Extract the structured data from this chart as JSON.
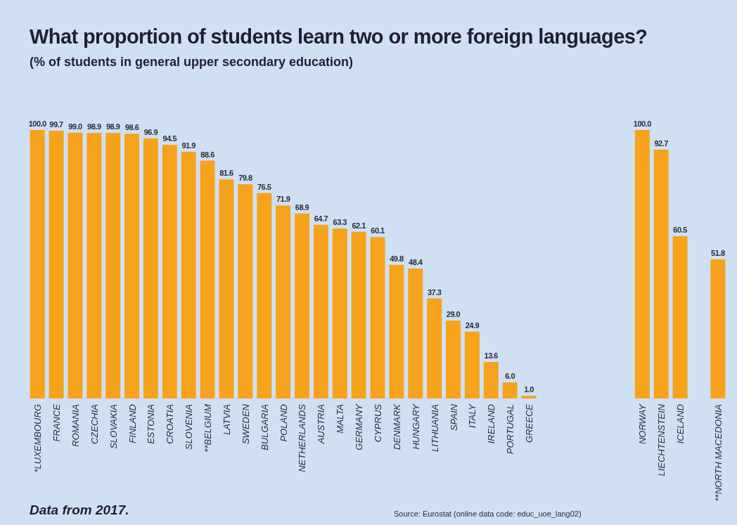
{
  "chart_data": {
    "type": "bar",
    "title": "What proportion of students learn two or more foreign languages?",
    "subtitle": "(% of students in general upper secondary education)",
    "categories": [
      "*LUXEMBOURG",
      "FRANCE",
      "ROMANIA",
      "CZECHIA",
      "SLOVAKIA",
      "FINLAND",
      "ESTONIA",
      "CROATIA",
      "SLOVENIA",
      "**BELGIUM",
      "LATVIA",
      "SWEDEN",
      "BULGARIA",
      "POLAND",
      "NETHERLANDS",
      "AUSTRIA",
      "MALTA",
      "GERMANY",
      "CYPRUS",
      "DENMARK",
      "HUNGARY",
      "LITHUANIA",
      "SPAIN",
      "ITALY",
      "IRELAND",
      "PORTUGAL",
      "GREECE",
      null,
      null,
      null,
      null,
      null,
      "NORWAY",
      "LIECHTENSTEIN",
      "ICELAND",
      null,
      "**NORTH MACEDONIA"
    ],
    "values": [
      100.0,
      99.7,
      99.0,
      98.9,
      98.9,
      98.6,
      96.9,
      94.5,
      91.9,
      88.6,
      81.6,
      79.8,
      76.5,
      71.9,
      68.9,
      64.7,
      63.3,
      62.1,
      60.1,
      49.8,
      48.4,
      37.3,
      29.0,
      24.9,
      13.6,
      6.0,
      1.0,
      null,
      null,
      null,
      null,
      null,
      100.0,
      92.7,
      60.5,
      null,
      51.8
    ],
    "value_labels": [
      "100.0",
      "99.7",
      "99.0",
      "98.9",
      "98.9",
      "98.6",
      "96.9",
      "94.5",
      "91.9",
      "88.6",
      "81.6",
      "79.8",
      "76.5",
      "71.9",
      "68.9",
      "64.7",
      "63.3",
      "62.1",
      "60.1",
      "49.8",
      "48.4",
      "37.3",
      "29.0",
      "24.9",
      "13.6",
      "6.0",
      "1.0",
      null,
      null,
      null,
      null,
      null,
      "100.0",
      "92.7",
      "60.5",
      null,
      "51.8"
    ],
    "color": "#f7a21b",
    "annotations": [
      "Data from 2017.",
      "Source: Eurostat (online data code: educ_uoe_lang02)"
    ]
  }
}
